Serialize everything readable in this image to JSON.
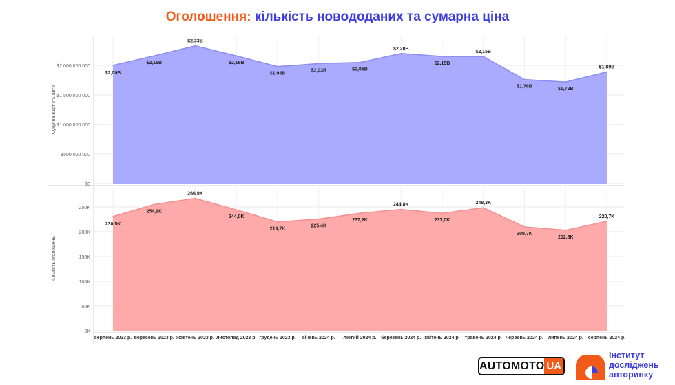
{
  "title": {
    "accent": "Оголошення:",
    "rest": " кількість новододаних та сумарна ціна"
  },
  "colors": {
    "top_fill": "#aaaaff",
    "top_line": "#8c8cf2",
    "bottom_fill": "#ffaaaa",
    "bottom_line": "#f09090",
    "accent": "#f25a1a",
    "title_blue": "#3d3ddb",
    "grid": "#e9e9e9"
  },
  "chart_data": [
    {
      "type": "area",
      "ylabel": "Сукупна вартість авто",
      "ylim": [
        0,
        2500000000
      ],
      "yticks": [
        0,
        500000000,
        1000000000,
        1500000000,
        2000000000
      ],
      "ytick_labels": [
        "$0",
        "$500 000 000",
        "$1 000 000 000",
        "$1 500 000 000",
        "$2 000 000 000"
      ],
      "categories": [
        "серпень 2023 р.",
        "вересень 2023 р.",
        "жовтень 2023 р.",
        "листопад 2023 р.",
        "грудень 2023 р.",
        "січень 2024 р.",
        "лютий 2024 р.",
        "березень 2024 р.",
        "квітень 2024 р.",
        "травень 2024 р.",
        "червень 2024 р.",
        "липень 2024 р.",
        "серпень 2024 р."
      ],
      "values": [
        2000000000,
        2160000000,
        2330000000,
        2160000000,
        1980000000,
        2030000000,
        2050000000,
        2200000000,
        2150000000,
        2150000000,
        1760000000,
        1720000000,
        1890000000
      ],
      "data_labels": [
        "$2,00B",
        "$2,16B",
        "$2,33B",
        "$2,16B",
        "$1,98B",
        "$2,03B",
        "$2,05B",
        "$2,20B",
        "$2,15B",
        "$2,15B",
        "$1,76B",
        "$1,72B",
        "$1,89B"
      ],
      "grid": true
    },
    {
      "type": "area",
      "ylabel": "Кількість оголошень",
      "ylim": [
        0,
        290000
      ],
      "yticks": [
        0,
        50000,
        100000,
        150000,
        200000,
        250000
      ],
      "ytick_labels": [
        "0K",
        "50K",
        "100K",
        "150K",
        "200K",
        "250K"
      ],
      "categories": [
        "серпень 2023 р.",
        "вересень 2023 р.",
        "жовтень 2023 р.",
        "листопад 2023 р.",
        "грудень 2023 р.",
        "січень 2024 р.",
        "лютий 2024 р.",
        "березень 2024 р.",
        "квітень 2024 р.",
        "травень 2024 р.",
        "червень 2024 р.",
        "липень 2024 р.",
        "серпень 2024 р."
      ],
      "values": [
        230500,
        254900,
        266900,
        244000,
        219700,
        225400,
        237200,
        244800,
        237000,
        248300,
        209700,
        202800,
        220700
      ],
      "data_labels": [
        "230,5K",
        "254,9K",
        "266,9K",
        "244,0K",
        "219,7K",
        "225,4K",
        "237,2K",
        "244,8K",
        "237,0K",
        "248,3K",
        "209,7K",
        "202,8K",
        "220,7K"
      ],
      "grid": true
    }
  ],
  "logos": {
    "automoto": {
      "main": "AUTOMOTO",
      "box": "UA"
    },
    "institute": {
      "line1": "Інститут",
      "line2": "досліджень",
      "line3": "авторинку"
    }
  }
}
